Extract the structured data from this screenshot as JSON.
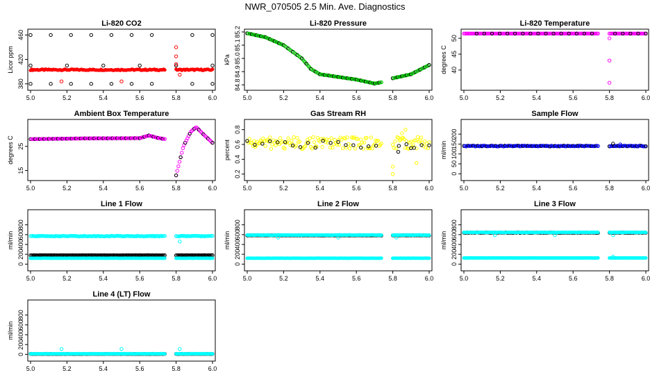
{
  "figure": {
    "title": "NWR_070505  2.5 Min. Ave. Diagnostics"
  },
  "colors": {
    "red": "#ff0000",
    "green": "#00c800",
    "magenta": "#ff00ff",
    "yellow": "#ffff00",
    "blue": "#0000ff",
    "cyan": "#00ffff",
    "black": "#000000"
  },
  "chart_data": [
    {
      "type": "scatter",
      "title": "Li-820 CO2",
      "ylabel": "Licor ppm",
      "xlim": [
        5.0,
        6.0
      ],
      "ylim": [
        374,
        465
      ],
      "x_ticks": [
        "5.0",
        "5.2",
        "5.4",
        "5.6",
        "5.8",
        "6.0"
      ],
      "y_ticks": [
        {
          "value": 380,
          "label": "380"
        },
        {
          "value": 420,
          "label": "420"
        },
        {
          "value": 460,
          "label": "460"
        }
      ],
      "x_gap": [
        5.74,
        5.8
      ],
      "series": [
        {
          "name": "co2-main",
          "color": "red",
          "shape": "dot",
          "x0": 5.0,
          "x1": 6.0,
          "level": 403,
          "amp": 1
        },
        {
          "name": "co2-high",
          "color": "black",
          "shape": "circle",
          "x0": 5.0,
          "x1": 6.0,
          "level": 460,
          "sparse": 10
        },
        {
          "name": "co2-mid",
          "color": "black",
          "shape": "circle",
          "x0": 5.0,
          "x1": 6.0,
          "level": 410,
          "sparse": 16
        },
        {
          "name": "co2-low",
          "color": "black",
          "shape": "circle",
          "x0": 5.0,
          "x1": 6.0,
          "level": 380,
          "sparse": 10
        }
      ],
      "outliers": [
        {
          "x": 5.17,
          "y": 384,
          "color": "red"
        },
        {
          "x": 5.5,
          "y": 384,
          "color": "red"
        },
        {
          "x": 5.8,
          "y": 412,
          "color": "red"
        },
        {
          "x": 5.8,
          "y": 425,
          "color": "red"
        },
        {
          "x": 5.8,
          "y": 440,
          "color": "red"
        },
        {
          "x": 5.82,
          "y": 395,
          "color": "red"
        }
      ]
    },
    {
      "type": "scatter",
      "title": "Li-820 Pressure",
      "ylabel": "kPa",
      "xlim": [
        5.0,
        6.0
      ],
      "ylim": [
        84.78,
        85.2
      ],
      "x_ticks": [
        "5.0",
        "5.2",
        "5.4",
        "5.6",
        "5.8",
        "6.0"
      ],
      "y_ticks": [
        {
          "value": 84.8,
          "label": "84.8"
        },
        {
          "value": 84.9,
          "label": "84.9"
        },
        {
          "value": 85.0,
          "label": "85.0"
        },
        {
          "value": 85.1,
          "label": "85.1"
        },
        {
          "value": 85.2,
          "label": "85.2"
        }
      ],
      "x_gap": [
        5.74,
        5.8
      ],
      "series": [
        {
          "name": "pressure",
          "color": "green",
          "shape": "circle",
          "overlay": "black",
          "curve": [
            [
              5.0,
              85.19
            ],
            [
              5.1,
              85.16
            ],
            [
              5.2,
              85.1
            ],
            [
              5.3,
              85.0
            ],
            [
              5.35,
              84.92
            ],
            [
              5.4,
              84.88
            ],
            [
              5.5,
              84.86
            ],
            [
              5.6,
              84.84
            ],
            [
              5.7,
              84.81
            ],
            [
              5.74,
              84.82
            ],
            [
              5.8,
              84.85
            ],
            [
              5.9,
              84.88
            ],
            [
              6.0,
              84.95
            ]
          ]
        }
      ]
    },
    {
      "type": "scatter",
      "title": "Li-820 Temperature",
      "ylabel": "degrees C",
      "xlim": [
        5.0,
        6.0
      ],
      "ylim": [
        34.5,
        52
      ],
      "x_ticks": [
        "5.0",
        "5.2",
        "5.4",
        "5.6",
        "5.8",
        "6.0"
      ],
      "y_ticks": [
        {
          "value": 40,
          "label": "40"
        },
        {
          "value": 45,
          "label": "45"
        },
        {
          "value": 50,
          "label": "50"
        }
      ],
      "x_gap": [
        5.74,
        5.8
      ],
      "series": [
        {
          "name": "temp-magenta",
          "color": "magenta",
          "shape": "circle",
          "x0": 5.0,
          "x1": 6.0,
          "level": 51.5,
          "amp": 0
        },
        {
          "name": "temp-black",
          "color": "black",
          "shape": "circle",
          "x0": 5.07,
          "x1": 6.0,
          "level": 51.5,
          "sparse": 4
        }
      ],
      "outliers": [
        {
          "x": 5.8,
          "y": 50,
          "color": "magenta"
        },
        {
          "x": 5.8,
          "y": 43,
          "color": "magenta"
        },
        {
          "x": 5.8,
          "y": 36,
          "color": "magenta"
        }
      ]
    },
    {
      "type": "scatter",
      "title": "Ambient Box Temperature",
      "ylabel": "degrees C",
      "xlim": [
        5.0,
        6.0
      ],
      "ylim": [
        12,
        35
      ],
      "x_ticks": [
        "5.0",
        "5.2",
        "5.4",
        "5.6",
        "5.8",
        "6.0"
      ],
      "y_ticks": [
        {
          "value": 15,
          "label": "15"
        },
        {
          "value": 25,
          "label": "25"
        }
      ],
      "x_gap": [
        5.74,
        5.8
      ],
      "series": [
        {
          "name": "ambient",
          "color": "magenta",
          "shape": "circle",
          "overlay": "black",
          "curve": [
            [
              5.0,
              28
            ],
            [
              5.3,
              28.3
            ],
            [
              5.6,
              28.4
            ],
            [
              5.65,
              29.5
            ],
            [
              5.7,
              28.5
            ],
            [
              5.74,
              28
            ],
            [
              5.8,
              13
            ],
            [
              5.84,
              25
            ],
            [
              5.88,
              31
            ],
            [
              5.91,
              33
            ],
            [
              5.95,
              30
            ],
            [
              6.0,
              26.5
            ]
          ]
        }
      ]
    },
    {
      "type": "scatter",
      "title": "Gas Stream RH",
      "ylabel": "percent",
      "xlim": [
        5.0,
        6.0
      ],
      "ylim": [
        0.15,
        0.9
      ],
      "x_ticks": [
        "5.0",
        "5.2",
        "5.4",
        "5.6",
        "5.8",
        "6.0"
      ],
      "y_ticks": [
        {
          "value": 0.2,
          "label": "0.2"
        },
        {
          "value": 0.4,
          "label": "0.4"
        },
        {
          "value": 0.6,
          "label": "0.6"
        },
        {
          "value": 0.8,
          "label": "0.8"
        }
      ],
      "x_gap": [
        5.74,
        5.8
      ],
      "series": [
        {
          "name": "rh-yellow",
          "color": "yellow",
          "shape": "circle",
          "x0": 5.0,
          "x1": 6.0,
          "level": 0.62,
          "amp": 0.08
        },
        {
          "name": "rh-black",
          "color": "black",
          "shape": "circle",
          "x0": 5.0,
          "x1": 6.0,
          "level": 0.6,
          "sparse": 4,
          "amp": 0.05
        }
      ],
      "outliers": [
        {
          "x": 5.8,
          "y": 0.2,
          "color": "yellow"
        },
        {
          "x": 5.8,
          "y": 0.3,
          "color": "yellow"
        },
        {
          "x": 5.83,
          "y": 0.5,
          "color": "black"
        },
        {
          "x": 5.85,
          "y": 0.75,
          "color": "yellow"
        },
        {
          "x": 5.87,
          "y": 0.8,
          "color": "yellow"
        },
        {
          "x": 5.9,
          "y": 0.55,
          "color": "black"
        },
        {
          "x": 5.93,
          "y": 0.35,
          "color": "yellow"
        }
      ]
    },
    {
      "type": "scatter",
      "title": "Sample Flow",
      "ylabel": "ml/min",
      "xlim": [
        5.0,
        6.0
      ],
      "ylim": [
        -20,
        260
      ],
      "x_ticks": [
        "5.0",
        "5.2",
        "5.4",
        "5.6",
        "5.8",
        "6.0"
      ],
      "y_ticks": [
        {
          "value": 0,
          "label": "0"
        },
        {
          "value": 50,
          "label": "50"
        },
        {
          "value": 100,
          "label": "100"
        },
        {
          "value": 150,
          "label": "150"
        },
        {
          "value": 200,
          "label": "200"
        }
      ],
      "x_gap": [
        5.74,
        5.8
      ],
      "series": [
        {
          "name": "sample-flow",
          "color": "blue",
          "shape": "circle",
          "overlay": "black",
          "x0": 5.0,
          "x1": 6.0,
          "level": 140,
          "amp": 2
        }
      ],
      "outliers": [
        {
          "x": 5.82,
          "y": 152,
          "color": "black"
        },
        {
          "x": 5.86,
          "y": 148,
          "color": "blue"
        }
      ]
    },
    {
      "type": "scatter",
      "title": "Line 1 Flow",
      "ylabel": "ml/min",
      "xlim": [
        5.0,
        6.0
      ],
      "ylim": [
        -80,
        1050
      ],
      "x_ticks": [
        "5.0",
        "5.2",
        "5.4",
        "5.6",
        "5.8",
        "6.0"
      ],
      "y_ticks": [
        {
          "value": 0,
          "label": "0"
        },
        {
          "value": 200,
          "label": "200"
        },
        {
          "value": 400,
          "label": "400"
        },
        {
          "value": 600,
          "label": "600"
        },
        {
          "value": 800,
          "label": "800"
        }
      ],
      "x_gap": [
        5.74,
        5.8
      ],
      "series": [
        {
          "name": "line1-cyan-high",
          "color": "cyan",
          "shape": "circle",
          "x0": 5.0,
          "x1": 6.0,
          "level": 570,
          "amp": 8
        },
        {
          "name": "line1-black",
          "color": "black",
          "shape": "circle",
          "x0": 5.0,
          "x1": 6.0,
          "level": 180,
          "amp": 2
        },
        {
          "name": "line1-cyan-low",
          "color": "cyan",
          "shape": "dot",
          "x0": 5.0,
          "x1": 6.0,
          "level": 120,
          "amp": 1
        }
      ],
      "outliers": [
        {
          "x": 5.82,
          "y": 460,
          "color": "cyan"
        }
      ]
    },
    {
      "type": "scatter",
      "title": "Line 2 Flow",
      "ylabel": "ml/min",
      "xlim": [
        5.0,
        6.0
      ],
      "ylim": [
        -80,
        1050
      ],
      "x_ticks": [
        "5.0",
        "5.2",
        "5.4",
        "5.6",
        "5.8",
        "6.0"
      ],
      "y_ticks": [
        {
          "value": 0,
          "label": "0"
        },
        {
          "value": 200,
          "label": "200"
        },
        {
          "value": 400,
          "label": "400"
        },
        {
          "value": 600,
          "label": "600"
        },
        {
          "value": 800,
          "label": "800"
        }
      ],
      "x_gap": [
        5.74,
        5.8
      ],
      "series": [
        {
          "name": "line2-black",
          "color": "black",
          "shape": "circle",
          "x0": 5.0,
          "x1": 6.0,
          "level": 585,
          "amp": 2
        },
        {
          "name": "line2-cyan-high",
          "color": "cyan",
          "shape": "dot",
          "x0": 5.0,
          "x1": 6.0,
          "level": 590,
          "amp": 4
        },
        {
          "name": "line2-cyan-low",
          "color": "cyan",
          "shape": "dot",
          "x0": 5.0,
          "x1": 6.0,
          "level": 120,
          "amp": 1
        }
      ],
      "outliers": [
        {
          "x": 5.17,
          "y": 540,
          "color": "cyan"
        },
        {
          "x": 5.5,
          "y": 540,
          "color": "cyan"
        },
        {
          "x": 5.82,
          "y": 540,
          "color": "cyan"
        }
      ]
    },
    {
      "type": "scatter",
      "title": "Line 3 Flow",
      "ylabel": "ml/min",
      "xlim": [
        5.0,
        6.0
      ],
      "ylim": [
        -80,
        1050
      ],
      "x_ticks": [
        "5.0",
        "5.2",
        "5.4",
        "5.6",
        "5.8",
        "6.0"
      ],
      "y_ticks": [
        {
          "value": 0,
          "label": "0"
        },
        {
          "value": 200,
          "label": "200"
        },
        {
          "value": 400,
          "label": "400"
        },
        {
          "value": 600,
          "label": "600"
        },
        {
          "value": 800,
          "label": "800"
        }
      ],
      "x_gap": [
        5.74,
        5.8
      ],
      "series": [
        {
          "name": "line3-black",
          "color": "black",
          "shape": "circle",
          "x0": 5.0,
          "x1": 6.0,
          "level": 640,
          "amp": 4
        },
        {
          "name": "line3-cyan-high",
          "color": "cyan",
          "shape": "dot",
          "x0": 5.0,
          "x1": 6.0,
          "level": 645,
          "amp": 4
        },
        {
          "name": "line3-cyan-low",
          "color": "cyan",
          "shape": "dot",
          "x0": 5.0,
          "x1": 6.0,
          "level": 125,
          "amp": 1
        }
      ],
      "outliers": [
        {
          "x": 5.17,
          "y": 590,
          "color": "cyan"
        },
        {
          "x": 5.5,
          "y": 590,
          "color": "cyan"
        },
        {
          "x": 5.82,
          "y": 590,
          "color": "cyan"
        },
        {
          "x": 5.82,
          "y": 150,
          "color": "cyan"
        }
      ]
    },
    {
      "type": "scatter",
      "title": "Line 4 (LT) Flow",
      "ylabel": "ml/min",
      "xlim": [
        5.0,
        6.0
      ],
      "ylim": [
        -80,
        1050
      ],
      "x_ticks": [
        "5.0",
        "5.2",
        "5.4",
        "5.6",
        "5.8",
        "6.0"
      ],
      "y_ticks": [
        {
          "value": 0,
          "label": "0"
        },
        {
          "value": 200,
          "label": "200"
        },
        {
          "value": 400,
          "label": "400"
        },
        {
          "value": 600,
          "label": "600"
        },
        {
          "value": 800,
          "label": "800"
        }
      ],
      "x_gap": [
        5.74,
        5.8
      ],
      "series": [
        {
          "name": "line4-black",
          "color": "black",
          "shape": "circle",
          "x0": 5.0,
          "x1": 6.0,
          "level": 10,
          "amp": 1
        },
        {
          "name": "line4-cyan",
          "color": "cyan",
          "shape": "dot",
          "x0": 5.0,
          "x1": 6.0,
          "level": 12,
          "amp": 2
        }
      ],
      "outliers": [
        {
          "x": 5.17,
          "y": 110,
          "color": "cyan"
        },
        {
          "x": 5.5,
          "y": 110,
          "color": "cyan"
        },
        {
          "x": 5.82,
          "y": 110,
          "color": "cyan"
        }
      ]
    }
  ]
}
